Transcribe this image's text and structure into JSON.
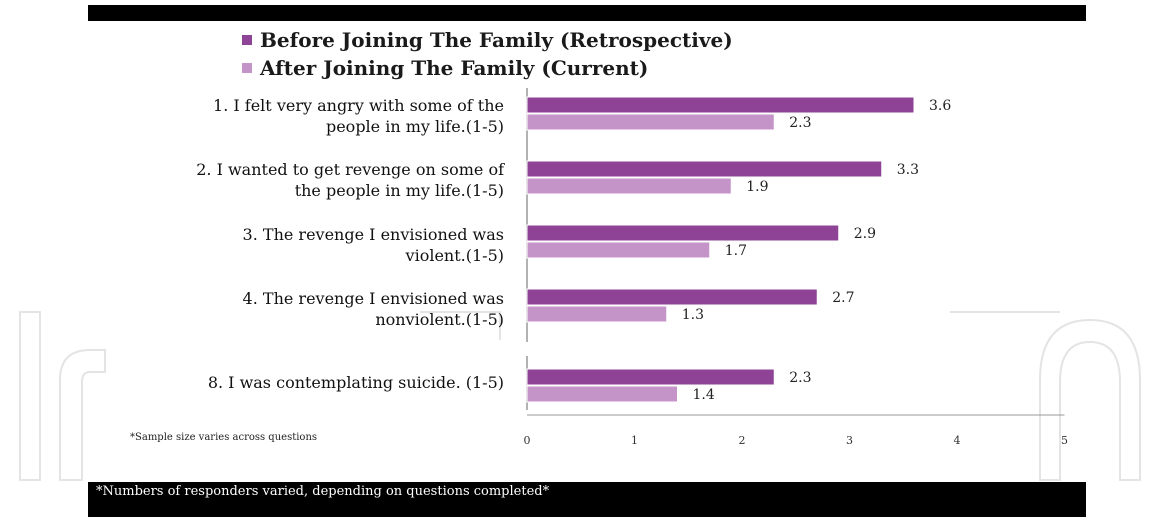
{
  "legend": {
    "before_label": "Before Joining The Family (Retrospective)",
    "after_label": "After Joining The Family (Current)"
  },
  "note": "*Sample size varies across questions",
  "footer": "*Numbers of responders varied, depending on questions completed*",
  "colors": {
    "before": "#8e4396",
    "after": "#c493c8",
    "axis": "#999999"
  },
  "chart_data": {
    "type": "bar",
    "orientation": "horizontal",
    "categories": [
      "1. I felt very angry with some of the\npeople in my life.(1-5)",
      "2. I wanted to get revenge on some of\nthe people in my life.(1-5)",
      "3. The revenge I envisioned was\nviolent.(1-5)",
      "4. The revenge I envisioned was\nnonviolent.(1-5)",
      "8. I was contemplating suicide. (1-5)"
    ],
    "series": [
      {
        "name": "Before Joining The Family (Retrospective)",
        "values": [
          3.6,
          3.3,
          2.9,
          2.7,
          2.3
        ]
      },
      {
        "name": "After Joining The Family (Current)",
        "values": [
          2.3,
          1.9,
          1.7,
          1.3,
          1.4
        ]
      }
    ],
    "value_labels": [
      [
        "3.6",
        "3.3",
        "2.9",
        "2.7",
        "2.3"
      ],
      [
        "2.3",
        "1.9",
        "1.7",
        "1.3",
        "1.4"
      ]
    ],
    "xlim": [
      0,
      5
    ],
    "xticks": [
      "0",
      "1",
      "2",
      "3",
      "4",
      "5"
    ],
    "grid": false
  }
}
